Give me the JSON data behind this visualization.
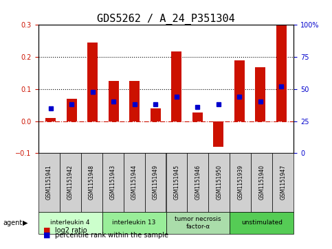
{
  "title": "GDS5262 / A_24_P351304",
  "samples": [
    "GSM1151941",
    "GSM1151942",
    "GSM1151948",
    "GSM1151943",
    "GSM1151944",
    "GSM1151949",
    "GSM1151945",
    "GSM1151946",
    "GSM1151950",
    "GSM1151939",
    "GSM1151940",
    "GSM1151947"
  ],
  "log2_ratio": [
    0.01,
    0.07,
    0.245,
    0.125,
    0.125,
    0.04,
    0.218,
    0.027,
    -0.08,
    0.19,
    0.168,
    0.3
  ],
  "percentile_rank": [
    35,
    38,
    48,
    40,
    38,
    38,
    44,
    36,
    38,
    44,
    40,
    52
  ],
  "ylim_left": [
    -0.1,
    0.3
  ],
  "ylim_right": [
    0,
    100
  ],
  "yticks_left": [
    -0.1,
    0.0,
    0.1,
    0.2,
    0.3
  ],
  "yticks_right": [
    0,
    25,
    50,
    75,
    100
  ],
  "hlines_dotted": [
    0.1,
    0.2
  ],
  "bar_color": "#CC1100",
  "dot_color": "#0000CC",
  "zero_line_color": "#CC1100",
  "agent_groups": [
    {
      "label": "interleukin 4",
      "start": 0,
      "end": 3,
      "color": "#CCFFCC"
    },
    {
      "label": "interleukin 13",
      "start": 3,
      "end": 6,
      "color": "#99EE99"
    },
    {
      "label": "tumor necrosis\nfactor-α",
      "start": 6,
      "end": 9,
      "color": "#AADDAA"
    },
    {
      "label": "unstimulated",
      "start": 9,
      "end": 12,
      "color": "#55CC55"
    }
  ],
  "legend_bar_label": "log2 ratio",
  "legend_dot_label": "percentile rank within the sample",
  "bar_width": 0.5,
  "agent_label": "agent",
  "background_color": "#FFFFFF",
  "plot_bg_color": "#FFFFFF",
  "tick_label_size": 7,
  "title_fontsize": 11
}
